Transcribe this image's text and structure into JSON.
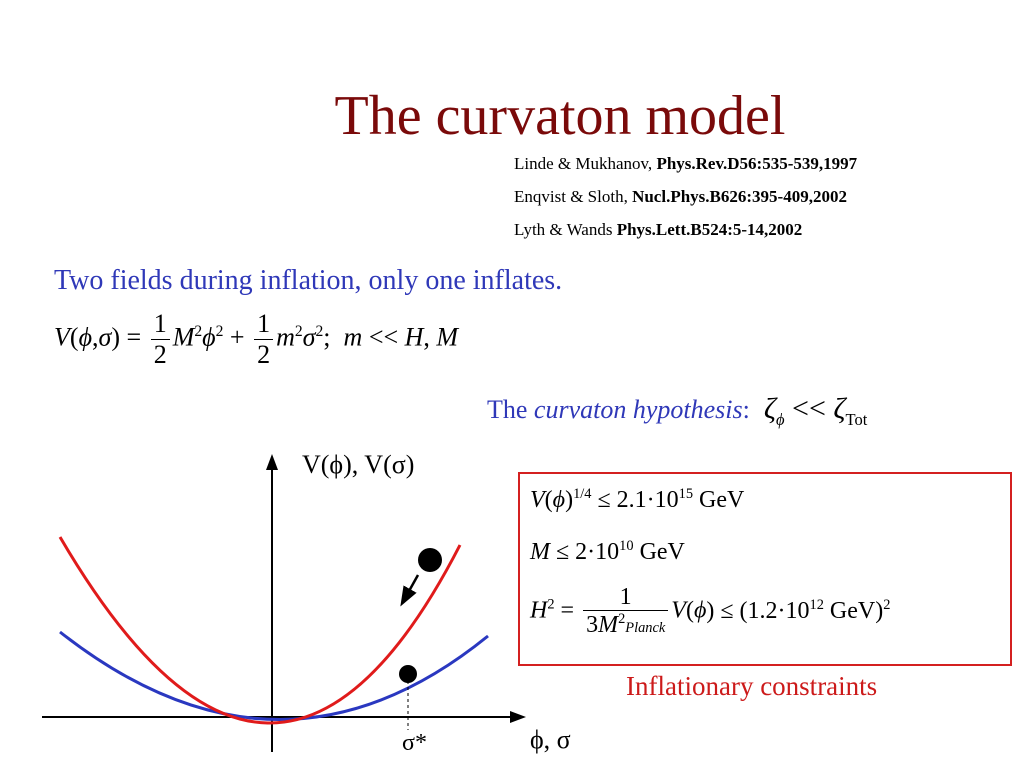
{
  "title": "The curvaton model",
  "references": [
    {
      "authors": "Linde & Mukhanov, ",
      "citation": "Phys.Rev.D56:535-539,1997"
    },
    {
      "authors": "Enqvist & Sloth, ",
      "citation": "Nucl.Phys.B626:395-409,2002"
    },
    {
      "authors": "Lyth & Wands ",
      "citation": "Phys.Lett.B524:5-14,2002"
    }
  ],
  "subtitle": "Two fields during inflation, only one inflates.",
  "hypothesis": {
    "prefix": "The ",
    "emphasis": "curvaton hypothesis",
    "suffix": ":"
  },
  "diagram": {
    "y_axis_label": "V(ϕ), V(σ)",
    "x_axis_label": "ϕ, σ",
    "sigma_star_label": "σ*",
    "colors": {
      "steep_potential": "#e01b1b",
      "shallow_potential": "#2a38c0",
      "axes": "#000000"
    }
  },
  "constraints_label": "Inflationary constraints",
  "colors": {
    "title": "#7a0a0a",
    "blue_text": "#2f38b8",
    "box_border": "#d42020"
  }
}
